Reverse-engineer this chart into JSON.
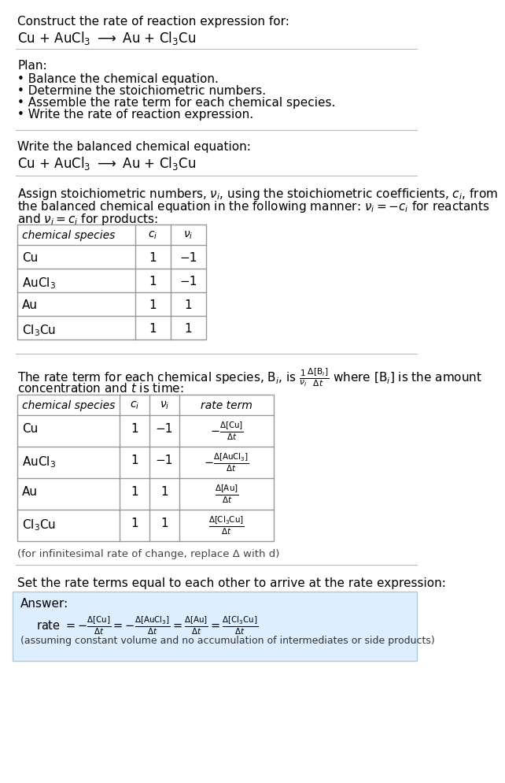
{
  "bg_color": "#ffffff",
  "text_color": "#000000",
  "table_border_color": "#999999",
  "answer_box_color": "#ddeeff",
  "answer_box_border": "#aaccdd",
  "section1_title": "Construct the rate of reaction expression for:",
  "section1_equation": "Cu + AuCl$_3$ $\\longrightarrow$ Au + Cl$_3$Cu",
  "section2_title": "Plan:",
  "section2_bullets": [
    "• Balance the chemical equation.",
    "• Determine the stoichiometric numbers.",
    "• Assemble the rate term for each chemical species.",
    "• Write the rate of reaction expression."
  ],
  "section3_title": "Write the balanced chemical equation:",
  "section3_equation": "Cu + AuCl$_3$ $\\longrightarrow$ Au + Cl$_3$Cu",
  "section4_line1": "Assign stoichiometric numbers, $\\nu_i$, using the stoichiometric coefficients, $c_i$, from",
  "section4_line2": "the balanced chemical equation in the following manner: $\\nu_i = -c_i$ for reactants",
  "section4_line3": "and $\\nu_i = c_i$ for products:",
  "table1_headers": [
    "chemical species",
    "$c_i$",
    "$\\nu_i$"
  ],
  "table1_rows": [
    [
      "Cu",
      "1",
      "−1"
    ],
    [
      "AuCl$_3$",
      "1",
      "−1"
    ],
    [
      "Au",
      "1",
      "1"
    ],
    [
      "Cl$_3$Cu",
      "1",
      "1"
    ]
  ],
  "section5_line1": "The rate term for each chemical species, B$_i$, is $\\frac{1}{\\nu_i}\\frac{\\Delta[\\mathrm{B}_i]}{\\Delta t}$ where [B$_i$] is the amount",
  "section5_line2": "concentration and $t$ is time:",
  "table2_headers": [
    "chemical species",
    "$c_i$",
    "$\\nu_i$",
    "rate term"
  ],
  "table2_rows": [
    [
      "Cu",
      "1",
      "−1",
      "$-\\frac{\\Delta[\\mathrm{Cu}]}{\\Delta t}$"
    ],
    [
      "AuCl$_3$",
      "1",
      "−1",
      "$-\\frac{\\Delta[\\mathrm{AuCl_3}]}{\\Delta t}$"
    ],
    [
      "Au",
      "1",
      "1",
      "$\\frac{\\Delta[\\mathrm{Au}]}{\\Delta t}$"
    ],
    [
      "Cl$_3$Cu",
      "1",
      "1",
      "$\\frac{\\Delta[\\mathrm{Cl_3Cu}]}{\\Delta t}$"
    ]
  ],
  "infinitesimal_note": "(for infinitesimal rate of change, replace Δ with d)",
  "section6_intro": "Set the rate terms equal to each other to arrive at the rate expression:",
  "answer_label": "Answer:",
  "rate_expression": "rate $= -\\frac{\\Delta[\\mathrm{Cu}]}{\\Delta t} = -\\frac{\\Delta[\\mathrm{AuCl_3}]}{\\Delta t} = \\frac{\\Delta[\\mathrm{Au}]}{\\Delta t} = \\frac{\\Delta[\\mathrm{Cl_3Cu}]}{\\Delta t}$",
  "assumption_note": "(assuming constant volume and no accumulation of intermediates or side products)"
}
